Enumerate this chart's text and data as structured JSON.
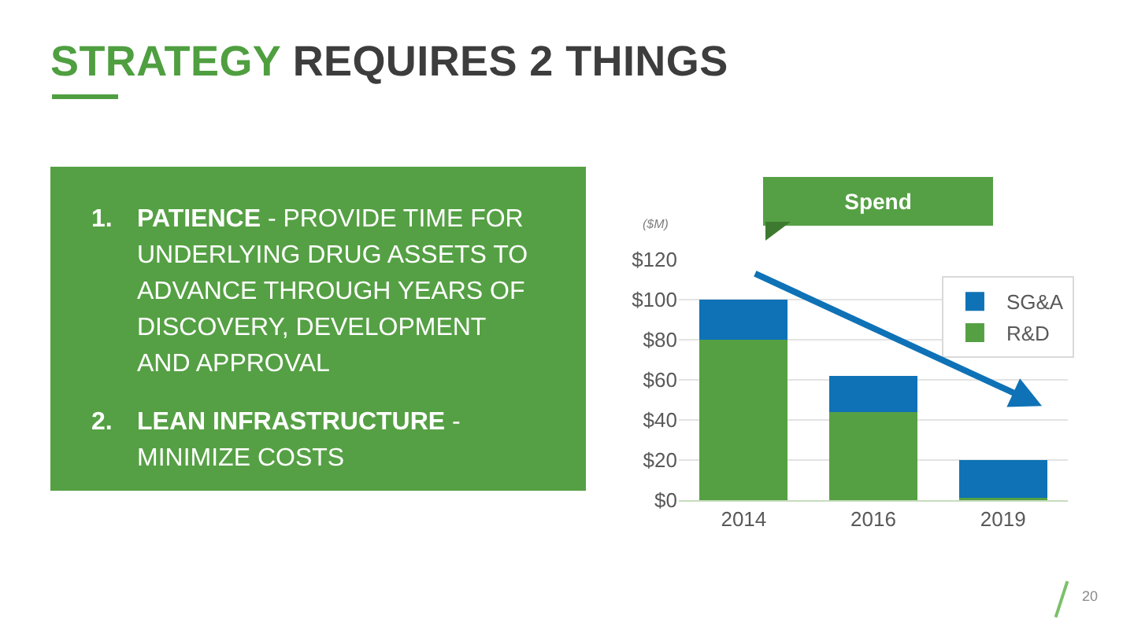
{
  "chart_data": {
    "type": "bar",
    "title": "STRATEGY REQUIRES 2 THINGS",
    "ylabel": "($M)",
    "annotations": [
      "1. PATIENCE - PROVIDE TIME FOR UNDERLYING DRUG ASSETS TO ADVANCE THROUGH YEARS OF DISCOVERY, DEVELOPMENT AND APPROVAL",
      "2. LEAN INFRASTRUCTURE - MINIMIZE COSTS",
      "Spend",
      "20"
    ],
    "categories": [
      "2014",
      "2016",
      "2019"
    ],
    "series": [
      {
        "name": "R&D",
        "color": "#56a044",
        "values": [
          80,
          44,
          1
        ]
      },
      {
        "name": "SG&A",
        "color": "#0f72b6",
        "values": [
          20,
          18,
          19
        ]
      }
    ],
    "stacked": true,
    "ylim": [
      0,
      120
    ],
    "yticks": [
      {
        "value": 0,
        "label": "$0"
      },
      {
        "value": 20,
        "label": "$20"
      },
      {
        "value": 40,
        "label": "$40"
      },
      {
        "value": 60,
        "label": "$60"
      },
      {
        "value": 80,
        "label": "$80"
      },
      {
        "value": 100,
        "label": "$100"
      },
      {
        "value": 120,
        "label": "$120"
      }
    ],
    "grid": "y",
    "legend": "top right"
  }
}
